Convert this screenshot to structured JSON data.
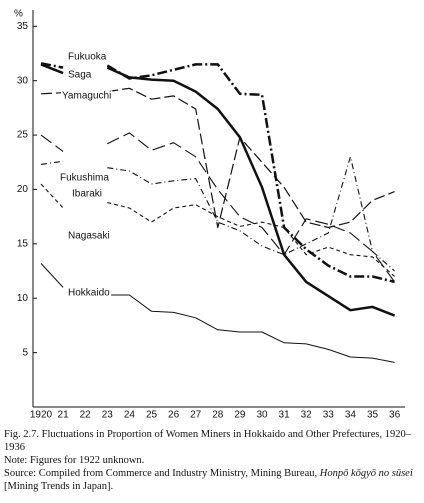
{
  "chart_data": {
    "type": "line",
    "ylabel": "%",
    "categories": [
      "1920",
      "21",
      "22",
      "23",
      "24",
      "25",
      "26",
      "27",
      "28",
      "29",
      "30",
      "31",
      "32",
      "33",
      "34",
      "35",
      "36"
    ],
    "ylim": [
      0,
      36.5
    ],
    "yticks": [
      5,
      10,
      15,
      20,
      25,
      30,
      35
    ],
    "series": [
      {
        "name": "Fukuoka",
        "color": "#111111",
        "dash": "10,3,2,3",
        "width": 2.5,
        "values": [
          31.6,
          31.2,
          null,
          31.4,
          30.2,
          30.5,
          31.0,
          31.5,
          31.5,
          28.8,
          28.7,
          16.5,
          14.5,
          13.0,
          12.0,
          12.0,
          11.5
        ]
      },
      {
        "name": "Saga",
        "color": "#111111",
        "dash": "none",
        "width": 2.5,
        "values": [
          31.5,
          30.7,
          null,
          31.2,
          30.3,
          30.1,
          30.0,
          29.0,
          27.4,
          24.8,
          20.2,
          14.0,
          11.5,
          10.2,
          8.9,
          9.2,
          8.4
        ]
      },
      {
        "name": "Yamaguchi",
        "color": "#111111",
        "dash": "11,4",
        "width": 1.2,
        "values": [
          28.8,
          28.9,
          null,
          29.0,
          29.3,
          28.3,
          28.6,
          27.4,
          16.5,
          24.8,
          22.5,
          20.2,
          17.0,
          16.5,
          17.0,
          19.0,
          19.8
        ]
      },
      {
        "name": "Fukushima",
        "color": "#111111",
        "dash": "13,5",
        "width": 1.1,
        "values": [
          25.0,
          23.5,
          null,
          24.2,
          25.2,
          23.6,
          24.3,
          23.0,
          20.0,
          17.5,
          16.5,
          14.0,
          17.3,
          16.8,
          16.0,
          14.3,
          11.5
        ]
      },
      {
        "name": "Ibaraki",
        "color": "#111111",
        "dash": "6,3,1,3",
        "width": 1.1,
        "values": [
          22.3,
          22.6,
          null,
          22.0,
          21.7,
          20.5,
          20.8,
          21.0,
          17.0,
          16.2,
          14.8,
          14.0,
          15.0,
          16.0,
          23.0,
          14.3,
          12.5
        ]
      },
      {
        "name": "Nagasaki",
        "color": "#111111",
        "dash": "4,3",
        "width": 1.1,
        "values": [
          20.5,
          18.3,
          null,
          18.8,
          18.3,
          17.0,
          18.3,
          18.6,
          17.5,
          16.6,
          17.0,
          16.5,
          14.0,
          14.7,
          14.0,
          13.8,
          12.0
        ]
      },
      {
        "name": "Hokkaido",
        "color": "#111111",
        "dash": "none",
        "width": 1.0,
        "values": [
          13.2,
          11.0,
          null,
          10.3,
          10.3,
          8.8,
          8.7,
          8.2,
          7.1,
          6.9,
          6.9,
          5.9,
          5.8,
          5.3,
          4.6,
          4.5,
          4.1
        ]
      }
    ],
    "caption": "Fig. 2.7. Fluctuations in Proportion of Women Miners in Hokkaido and Other Prefectures, 1920–1936",
    "note": "Note: Figures for 1922 unknown.",
    "source": [
      "Source: Compiled from Commerce and Industry Ministry, Mining Bureau, ",
      "Honpō kōgyō no sūsei",
      " [Mining Trends in Japan]."
    ]
  }
}
